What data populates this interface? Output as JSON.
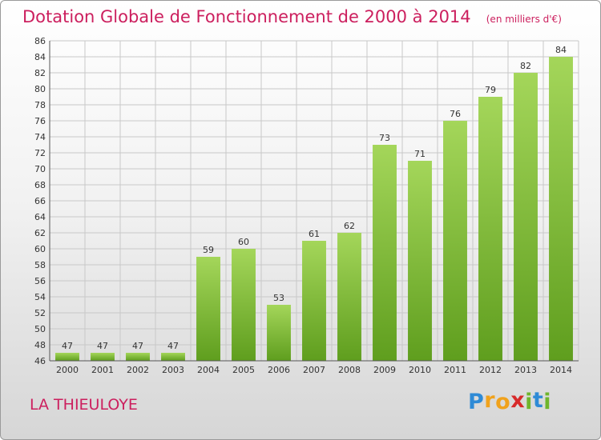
{
  "header": {
    "title": "Dotation Globale de Fonctionnement de 2000 à 2014",
    "subtitle": "(en milliers d'€)"
  },
  "footer": {
    "commune": "LA THIEULOYE",
    "logo_letters": [
      "P",
      "r",
      "o",
      "x",
      "i",
      "t",
      "i"
    ],
    "logo_colors": [
      "#2f8bd6",
      "#f0a21c",
      "#f0a21c",
      "#d72a2a",
      "#6fb52c",
      "#2f8bd6",
      "#6fb52c"
    ]
  },
  "colors": {
    "accent": "#cc1f5e",
    "bar_light": "#a4d65a",
    "bar_dark": "#5f9e1e",
    "grid": "#c8c8c8",
    "axis_text": "#333333"
  },
  "chart_data": {
    "type": "bar",
    "categories": [
      "2000",
      "2001",
      "2002",
      "2003",
      "2004",
      "2005",
      "2006",
      "2007",
      "2008",
      "2009",
      "2010",
      "2011",
      "2012",
      "2013",
      "2014"
    ],
    "values": [
      47,
      47,
      47,
      47,
      59,
      60,
      53,
      61,
      62,
      73,
      71,
      76,
      79,
      82,
      84
    ],
    "data_labels": [
      "47",
      "47",
      "47",
      "47",
      "59",
      "60",
      "53",
      "61",
      "62",
      "73",
      "71",
      "76",
      "79",
      "82",
      "84"
    ],
    "title": "Dotation Globale de Fonctionnement de 2000 à 2014",
    "subtitle": "(en milliers d'€)",
    "ylim": [
      46,
      86
    ],
    "yticks": [
      46,
      48,
      50,
      52,
      54,
      56,
      58,
      60,
      62,
      64,
      66,
      68,
      70,
      72,
      74,
      76,
      78,
      80,
      82,
      84,
      86
    ],
    "grid": true,
    "legend": "none"
  }
}
